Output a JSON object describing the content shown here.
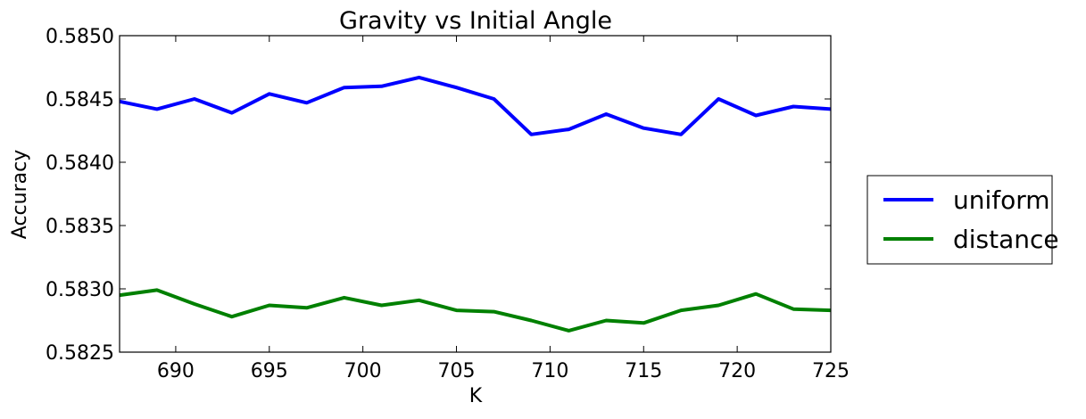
{
  "chart_data": {
    "type": "line",
    "title": "Gravity vs Initial Angle",
    "xlabel": "K",
    "ylabel": "Accuracy",
    "xlim": [
      687,
      725
    ],
    "ylim": [
      0.5825,
      0.585
    ],
    "xticks": [
      690,
      695,
      700,
      705,
      710,
      715,
      720,
      725
    ],
    "xtick_labels": [
      "690",
      "695",
      "700",
      "705",
      "710",
      "715",
      "720",
      "725"
    ],
    "yticks": [
      0.5825,
      0.583,
      0.5835,
      0.584,
      0.5845,
      0.585
    ],
    "ytick_labels": [
      "0.5825",
      "0.5830",
      "0.5835",
      "0.5840",
      "0.5845",
      "0.5850"
    ],
    "grid": false,
    "legend_position": "outside-right",
    "x": [
      687,
      689,
      691,
      693,
      695,
      697,
      699,
      701,
      703,
      705,
      707,
      709,
      711,
      713,
      715,
      717,
      719,
      721,
      723,
      725
    ],
    "series": [
      {
        "name": "uniform",
        "color": "#0000ff",
        "values": [
          0.58448,
          0.58442,
          0.5845,
          0.58439,
          0.58454,
          0.58447,
          0.58459,
          0.5846,
          0.58467,
          0.58459,
          0.5845,
          0.58422,
          0.58426,
          0.58438,
          0.58427,
          0.58422,
          0.5845,
          0.58437,
          0.58444,
          0.58442
        ]
      },
      {
        "name": "distance",
        "color": "#008000",
        "values": [
          0.58295,
          0.58299,
          0.58288,
          0.58278,
          0.58287,
          0.58285,
          0.58293,
          0.58287,
          0.58291,
          0.58283,
          0.58282,
          0.58275,
          0.58267,
          0.58275,
          0.58273,
          0.58283,
          0.58287,
          0.58296,
          0.58284,
          0.58283
        ]
      }
    ]
  }
}
